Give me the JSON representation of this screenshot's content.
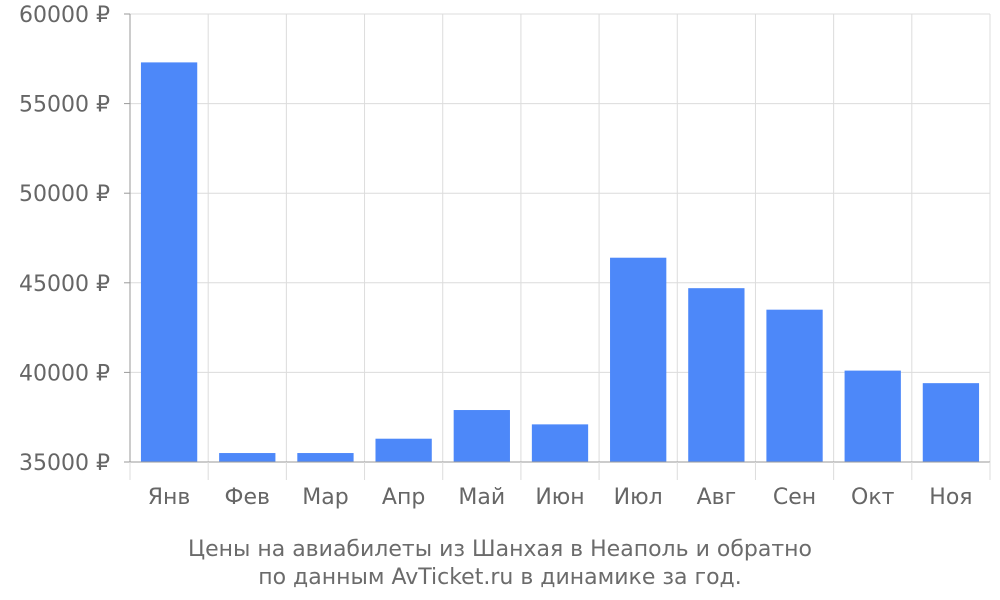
{
  "chart_data": {
    "type": "bar",
    "categories": [
      "Янв",
      "Фев",
      "Мар",
      "Апр",
      "Май",
      "Июн",
      "Июл",
      "Авг",
      "Сен",
      "Окт",
      "Ноя"
    ],
    "values": [
      57300,
      35500,
      35500,
      36300,
      37900,
      37100,
      46400,
      44700,
      43500,
      40100,
      39400
    ],
    "ylim": [
      35000,
      60000
    ],
    "yticks": [
      35000,
      40000,
      45000,
      50000,
      55000,
      60000
    ],
    "ytick_labels": [
      "35000 ₽",
      "40000 ₽",
      "45000 ₽",
      "50000 ₽",
      "55000 ₽",
      "60000 ₽"
    ],
    "bar_color": "#4d88f9",
    "grid": true
  },
  "caption": {
    "line1": "Цены на авиабилеты из Шанхая в Неаполь и обратно",
    "line2": "по данным AvTicket.ru в динамике за год."
  }
}
